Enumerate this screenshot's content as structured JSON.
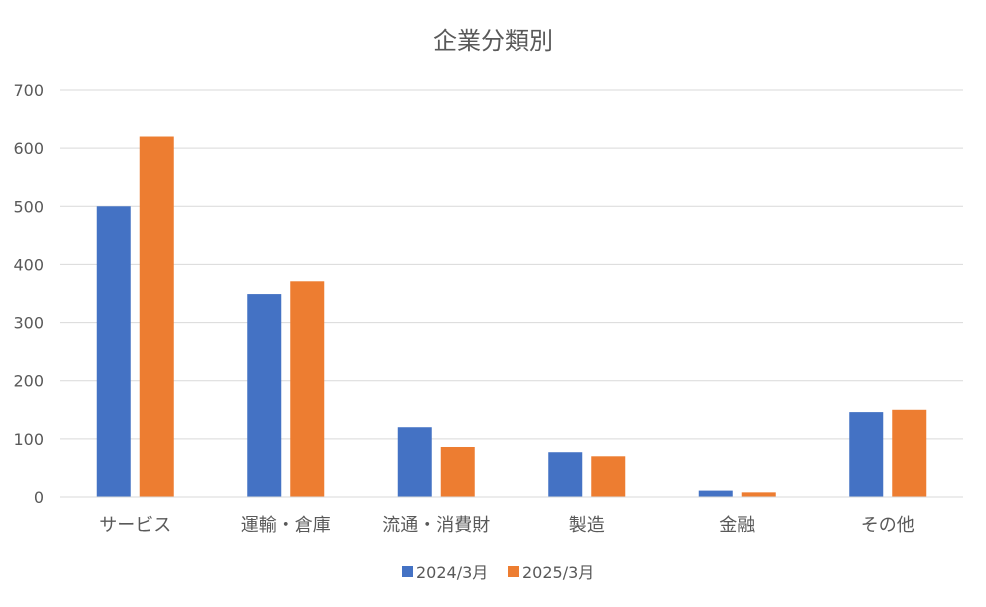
{
  "chart_data": {
    "type": "bar",
    "title": "企業分類別",
    "xlabel": "",
    "ylabel": "",
    "categories": [
      "サービス",
      "運輸・倉庫",
      "流通・消費財",
      "製造",
      "金融",
      "その他"
    ],
    "series": [
      {
        "name": "2024/3月",
        "color": "#4472C4",
        "values": [
          500,
          349,
          120,
          77,
          11,
          146
        ]
      },
      {
        "name": "2025/3月",
        "color": "#ED7D31",
        "values": [
          620,
          371,
          86,
          70,
          8,
          150
        ]
      }
    ],
    "ylim": [
      0,
      700
    ],
    "yticks": [
      0,
      100,
      200,
      300,
      400,
      500,
      600,
      700
    ],
    "grid": true,
    "legend_position": "bottom"
  }
}
